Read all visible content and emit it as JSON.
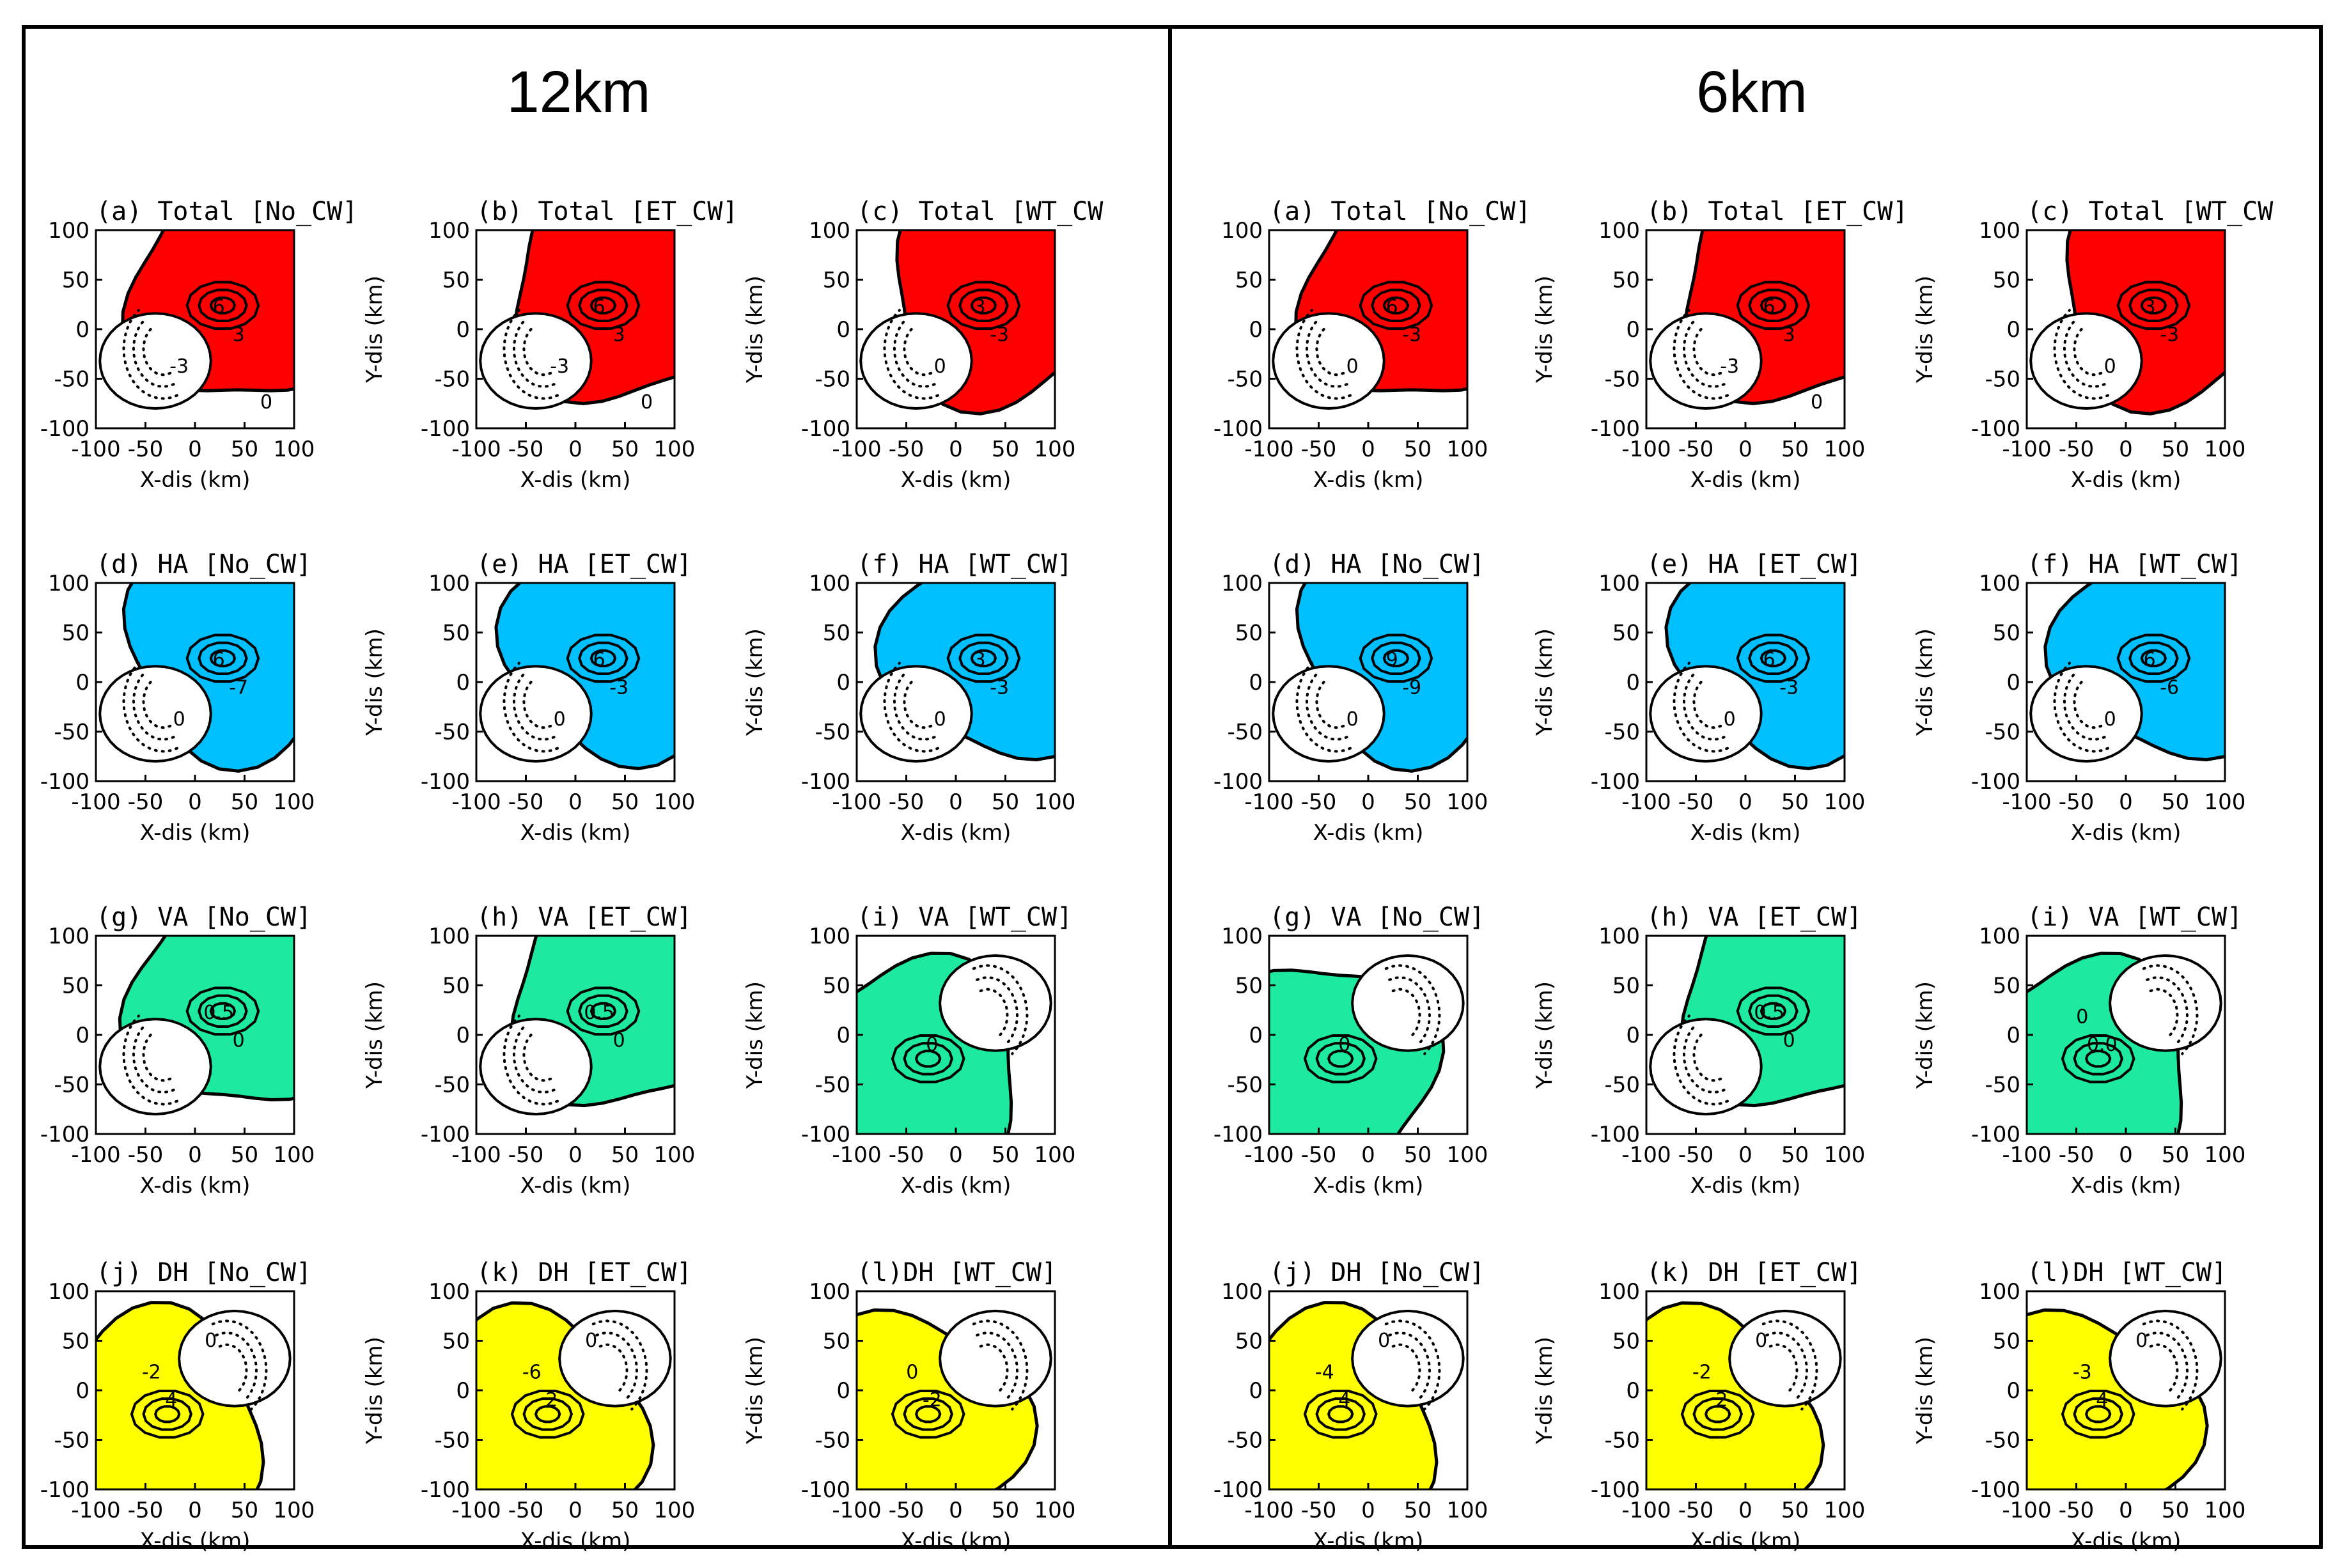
{
  "figure": {
    "columns": [
      {
        "title": "12km"
      },
      {
        "title": "6km"
      }
    ],
    "axis": {
      "xlabel": "X-dis (km)",
      "ylabel": "Y-dis (km)",
      "ticks": [
        -100,
        -50,
        0,
        50,
        100
      ],
      "range": [
        -100,
        100
      ]
    },
    "colors": {
      "Total": "#ff0000",
      "HA": "#00bfff",
      "VA": "#1de9a0",
      "DH": "#ffff00",
      "line": "#000000"
    }
  },
  "chart_data": [
    {
      "type": "contour",
      "resolution": "12km",
      "panels": [
        {
          "row": 0,
          "col": 0,
          "title": "(a) Total [No_CW]",
          "field": "Total",
          "labels": [
            "6",
            "3",
            "-3",
            "0"
          ],
          "rotation": 0
        },
        {
          "row": 0,
          "col": 1,
          "title": "(b) Total [ET_CW]",
          "field": "Total",
          "labels": [
            "6",
            "3",
            "-3",
            "0"
          ],
          "rotation": 0
        },
        {
          "row": 0,
          "col": 2,
          "title": "(c) Total [WT_CW",
          "field": "Total",
          "labels": [
            "3",
            "-3",
            "0"
          ],
          "rotation": 0
        },
        {
          "row": 1,
          "col": 0,
          "title": "(d) HA [No_CW]",
          "field": "HA",
          "labels": [
            "6",
            "-7",
            "0"
          ],
          "rotation": 0
        },
        {
          "row": 1,
          "col": 1,
          "title": "(e) HA [ET_CW]",
          "field": "HA",
          "labels": [
            "6",
            "-3",
            "0"
          ],
          "rotation": 0
        },
        {
          "row": 1,
          "col": 2,
          "title": "(f) HA [WT_CW]",
          "field": "HA",
          "labels": [
            "3",
            "-3",
            "0"
          ],
          "rotation": 0
        },
        {
          "row": 2,
          "col": 0,
          "title": "(g) VA [No_CW]",
          "field": "VA",
          "labels": [
            "0.5",
            "0"
          ],
          "rotation": 0
        },
        {
          "row": 2,
          "col": 1,
          "title": "(h) VA [ET_CW]",
          "field": "VA",
          "labels": [
            "0.5",
            "0"
          ],
          "rotation": 0
        },
        {
          "row": 2,
          "col": 2,
          "title": "(i) VA [WT_CW]",
          "field": "VA",
          "labels": [
            "0"
          ],
          "rotation": 3.14
        },
        {
          "row": 3,
          "col": 0,
          "title": "(j) DH [No_CW]",
          "field": "DH",
          "labels": [
            "4",
            "-2",
            "0"
          ],
          "rotation": 3.14
        },
        {
          "row": 3,
          "col": 1,
          "title": "(k) DH [ET_CW]",
          "field": "DH",
          "labels": [
            "2",
            "-6",
            "0"
          ],
          "rotation": 3.14
        },
        {
          "row": 3,
          "col": 2,
          "title": "(l)DH [WT_CW]",
          "field": "DH",
          "labels": [
            "-2",
            "0"
          ],
          "rotation": 3.14
        }
      ]
    },
    {
      "type": "contour",
      "resolution": "6km",
      "panels": [
        {
          "row": 0,
          "col": 0,
          "title": "(a) Total [No_CW]",
          "field": "Total",
          "labels": [
            "6",
            "-3",
            "0"
          ],
          "rotation": 0
        },
        {
          "row": 0,
          "col": 1,
          "title": "(b) Total [ET_CW]",
          "field": "Total",
          "labels": [
            "6",
            "3",
            "-3",
            "0"
          ],
          "rotation": 0
        },
        {
          "row": 0,
          "col": 2,
          "title": "(c) Total [WT_CW",
          "field": "Total",
          "labels": [
            "3",
            "-3",
            "0"
          ],
          "rotation": 0
        },
        {
          "row": 1,
          "col": 0,
          "title": "(d) HA [No_CW]",
          "field": "HA",
          "labels": [
            "9",
            "-9",
            "0"
          ],
          "rotation": 0
        },
        {
          "row": 1,
          "col": 1,
          "title": "(e) HA [ET_CW]",
          "field": "HA",
          "labels": [
            "6",
            "-3",
            "0"
          ],
          "rotation": 0
        },
        {
          "row": 1,
          "col": 2,
          "title": "(f) HA [WT_CW]",
          "field": "HA",
          "labels": [
            "6",
            "-6",
            "0"
          ],
          "rotation": 0
        },
        {
          "row": 2,
          "col": 0,
          "title": "(g) VA [No_CW]",
          "field": "VA",
          "labels": [
            "0"
          ],
          "rotation": 3.14
        },
        {
          "row": 2,
          "col": 1,
          "title": "(h) VA [ET_CW]",
          "field": "VA",
          "labels": [
            "0.5",
            "0"
          ],
          "rotation": 0
        },
        {
          "row": 2,
          "col": 2,
          "title": "(i) VA [WT_CW]",
          "field": "VA",
          "labels": [
            "0.0",
            "0"
          ],
          "rotation": 3.14
        },
        {
          "row": 3,
          "col": 0,
          "title": "(j) DH [No_CW]",
          "field": "DH",
          "labels": [
            "4",
            "-4",
            "0"
          ],
          "rotation": 3.14
        },
        {
          "row": 3,
          "col": 1,
          "title": "(k) DH [ET_CW]",
          "field": "DH",
          "labels": [
            "2",
            "-2",
            "0"
          ],
          "rotation": 3.14
        },
        {
          "row": 3,
          "col": 2,
          "title": "(l)DH [WT_CW]",
          "field": "DH",
          "labels": [
            "4",
            "-3",
            "0"
          ],
          "rotation": 3.14
        }
      ]
    }
  ]
}
